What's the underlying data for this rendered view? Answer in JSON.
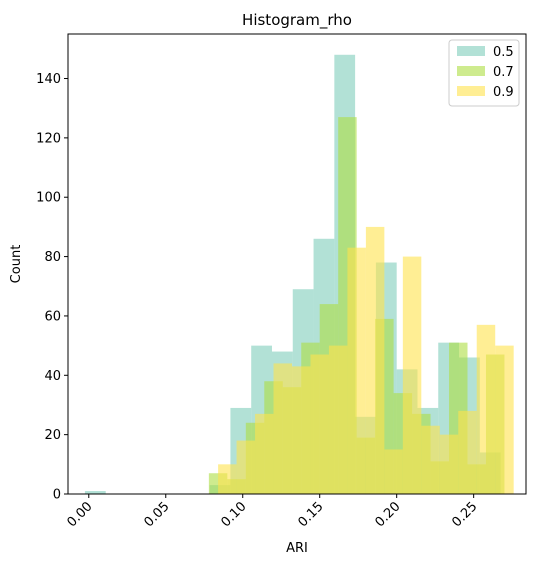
{
  "chart_data": {
    "type": "bar",
    "title": "Histogram_rho",
    "xlabel": "ARI",
    "ylabel": "Count",
    "xlim": [
      -0.0135,
      0.284
    ],
    "ylim": [
      0,
      155
    ],
    "x_ticks": [
      0.0,
      0.05,
      0.1,
      0.15,
      0.2,
      0.25
    ],
    "x_tick_labels": [
      "0.00",
      "0.05",
      "0.10",
      "0.15",
      "0.20",
      "0.25"
    ],
    "y_ticks": [
      0,
      20,
      40,
      60,
      80,
      100,
      120,
      140
    ],
    "y_tick_labels": [
      "0",
      "20",
      "40",
      "60",
      "80",
      "100",
      "120",
      "140"
    ],
    "grid": false,
    "legend_position": "top-right",
    "series": [
      {
        "name": "0.5",
        "color": "#7fcdbb",
        "opacity": 0.6,
        "bins": [
          {
            "x0": -0.0025,
            "x1": 0.011,
            "count": 1
          },
          {
            "x0": 0.0785,
            "x1": 0.092,
            "count": 3
          },
          {
            "x0": 0.092,
            "x1": 0.1055,
            "count": 29
          },
          {
            "x0": 0.1055,
            "x1": 0.119,
            "count": 50
          },
          {
            "x0": 0.119,
            "x1": 0.1325,
            "count": 48
          },
          {
            "x0": 0.1325,
            "x1": 0.146,
            "count": 69
          },
          {
            "x0": 0.146,
            "x1": 0.1595,
            "count": 86
          },
          {
            "x0": 0.1595,
            "x1": 0.173,
            "count": 148
          },
          {
            "x0": 0.173,
            "x1": 0.1865,
            "count": 26
          },
          {
            "x0": 0.1865,
            "x1": 0.2,
            "count": 78
          },
          {
            "x0": 0.2,
            "x1": 0.2135,
            "count": 42
          },
          {
            "x0": 0.2135,
            "x1": 0.227,
            "count": 29
          },
          {
            "x0": 0.227,
            "x1": 0.2405,
            "count": 51
          },
          {
            "x0": 0.2405,
            "x1": 0.254,
            "count": 46
          },
          {
            "x0": 0.254,
            "x1": 0.2675,
            "count": 14
          }
        ]
      },
      {
        "name": "0.7",
        "color": "#addd42",
        "opacity": 0.6,
        "bins": [
          {
            "x0": 0.078,
            "x1": 0.09,
            "count": 7
          },
          {
            "x0": 0.09,
            "x1": 0.102,
            "count": 5
          },
          {
            "x0": 0.102,
            "x1": 0.114,
            "count": 24
          },
          {
            "x0": 0.114,
            "x1": 0.126,
            "count": 38
          },
          {
            "x0": 0.126,
            "x1": 0.138,
            "count": 36
          },
          {
            "x0": 0.138,
            "x1": 0.15,
            "count": 51
          },
          {
            "x0": 0.15,
            "x1": 0.162,
            "count": 64
          },
          {
            "x0": 0.162,
            "x1": 0.174,
            "count": 127
          },
          {
            "x0": 0.174,
            "x1": 0.186,
            "count": 19
          },
          {
            "x0": 0.186,
            "x1": 0.198,
            "count": 59
          },
          {
            "x0": 0.198,
            "x1": 0.21,
            "count": 34
          },
          {
            "x0": 0.21,
            "x1": 0.222,
            "count": 27
          },
          {
            "x0": 0.222,
            "x1": 0.234,
            "count": 11
          },
          {
            "x0": 0.234,
            "x1": 0.246,
            "count": 51
          },
          {
            "x0": 0.246,
            "x1": 0.258,
            "count": 10
          },
          {
            "x0": 0.258,
            "x1": 0.27,
            "count": 47
          }
        ]
      },
      {
        "name": "0.9",
        "color": "#ffe34d",
        "opacity": 0.6,
        "bins": [
          {
            "x0": 0.084,
            "x1": 0.096,
            "count": 10
          },
          {
            "x0": 0.096,
            "x1": 0.108,
            "count": 18
          },
          {
            "x0": 0.108,
            "x1": 0.12,
            "count": 27
          },
          {
            "x0": 0.12,
            "x1": 0.132,
            "count": 44
          },
          {
            "x0": 0.132,
            "x1": 0.144,
            "count": 43
          },
          {
            "x0": 0.144,
            "x1": 0.156,
            "count": 47
          },
          {
            "x0": 0.156,
            "x1": 0.168,
            "count": 50
          },
          {
            "x0": 0.168,
            "x1": 0.18,
            "count": 83
          },
          {
            "x0": 0.18,
            "x1": 0.192,
            "count": 90
          },
          {
            "x0": 0.192,
            "x1": 0.204,
            "count": 15
          },
          {
            "x0": 0.204,
            "x1": 0.216,
            "count": 80
          },
          {
            "x0": 0.216,
            "x1": 0.228,
            "count": 23
          },
          {
            "x0": 0.228,
            "x1": 0.24,
            "count": 20
          },
          {
            "x0": 0.24,
            "x1": 0.252,
            "count": 28
          },
          {
            "x0": 0.252,
            "x1": 0.264,
            "count": 57
          },
          {
            "x0": 0.264,
            "x1": 0.276,
            "count": 50
          }
        ]
      }
    ]
  }
}
